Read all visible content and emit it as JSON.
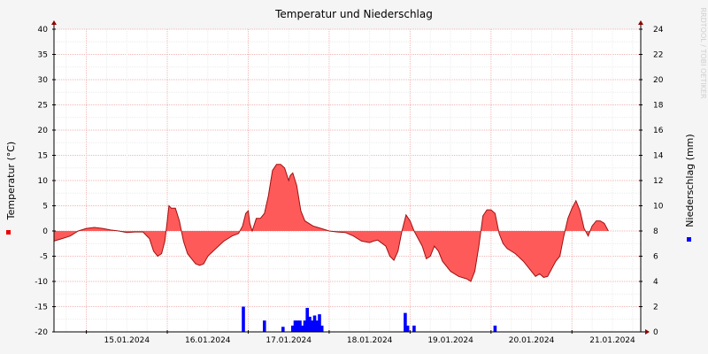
{
  "chart_data": {
    "type": "area",
    "title": "Temperatur und Niederschlag",
    "ylabel_left": "Temperatur (°C)",
    "ylabel_right": "Niederschlag (mm)",
    "watermark": "RRDTOOL / TOBI OETIKER",
    "ylim_left": [
      -20,
      40
    ],
    "ylim_right": [
      0,
      24
    ],
    "yticks_left": [
      "40",
      "35",
      "30",
      "25",
      "20",
      "15",
      "10",
      "5",
      "0",
      "-5",
      "-10",
      "-15",
      "-20"
    ],
    "yticks_right": [
      "24",
      "22",
      "20",
      "18",
      "16",
      "14",
      "12",
      "10",
      "8",
      "6",
      "4",
      "2",
      "0"
    ],
    "xticks": [
      "15.01.2024",
      "16.01.2024",
      "17.01.2024",
      "18.01.2024",
      "19.01.2024",
      "20.01.2024",
      "21.01.2024"
    ],
    "xlim_days": [
      14.6,
      21.85
    ],
    "grid": true,
    "series": [
      {
        "name": "Temperatur",
        "color": "#ff5a5a",
        "line_color": "#a01010",
        "type": "area",
        "points": [
          [
            14.6,
            -2.0
          ],
          [
            14.7,
            -1.5
          ],
          [
            14.8,
            -1.0
          ],
          [
            14.9,
            0.0
          ],
          [
            15.0,
            0.5
          ],
          [
            15.1,
            0.7
          ],
          [
            15.2,
            0.5
          ],
          [
            15.3,
            0.2
          ],
          [
            15.4,
            0.0
          ],
          [
            15.5,
            -0.3
          ],
          [
            15.6,
            -0.2
          ],
          [
            15.7,
            -0.2
          ],
          [
            15.78,
            -1.5
          ],
          [
            15.83,
            -4.0
          ],
          [
            15.88,
            -5.0
          ],
          [
            15.93,
            -4.5
          ],
          [
            15.97,
            -2.0
          ],
          [
            16.0,
            2.0
          ],
          [
            16.02,
            5.0
          ],
          [
            16.05,
            4.5
          ],
          [
            16.1,
            4.5
          ],
          [
            16.15,
            2.0
          ],
          [
            16.2,
            -2.0
          ],
          [
            16.25,
            -4.5
          ],
          [
            16.3,
            -5.5
          ],
          [
            16.35,
            -6.5
          ],
          [
            16.4,
            -6.8
          ],
          [
            16.45,
            -6.5
          ],
          [
            16.5,
            -5.0
          ],
          [
            16.6,
            -3.5
          ],
          [
            16.7,
            -2.0
          ],
          [
            16.8,
            -1.0
          ],
          [
            16.88,
            -0.5
          ],
          [
            16.93,
            1.0
          ],
          [
            16.97,
            3.5
          ],
          [
            17.0,
            4.0
          ],
          [
            17.02,
            1.5
          ],
          [
            17.05,
            0.0
          ],
          [
            17.1,
            2.5
          ],
          [
            17.15,
            2.5
          ],
          [
            17.2,
            3.5
          ],
          [
            17.25,
            7.0
          ],
          [
            17.3,
            12.0
          ],
          [
            17.35,
            13.2
          ],
          [
            17.4,
            13.2
          ],
          [
            17.45,
            12.5
          ],
          [
            17.5,
            10.0
          ],
          [
            17.52,
            11.0
          ],
          [
            17.55,
            11.5
          ],
          [
            17.6,
            9.0
          ],
          [
            17.65,
            4.0
          ],
          [
            17.7,
            2.0
          ],
          [
            17.8,
            1.0
          ],
          [
            17.9,
            0.5
          ],
          [
            18.0,
            0.0
          ],
          [
            18.1,
            -0.2
          ],
          [
            18.2,
            -0.3
          ],
          [
            18.3,
            -1.0
          ],
          [
            18.4,
            -2.0
          ],
          [
            18.5,
            -2.3
          ],
          [
            18.55,
            -2.0
          ],
          [
            18.6,
            -1.8
          ],
          [
            18.7,
            -3.0
          ],
          [
            18.75,
            -5.0
          ],
          [
            18.8,
            -5.8
          ],
          [
            18.85,
            -4.0
          ],
          [
            18.9,
            0.0
          ],
          [
            18.95,
            3.2
          ],
          [
            19.0,
            2.0
          ],
          [
            19.05,
            0.0
          ],
          [
            19.1,
            -1.5
          ],
          [
            19.15,
            -3.0
          ],
          [
            19.2,
            -5.5
          ],
          [
            19.25,
            -5.0
          ],
          [
            19.3,
            -3.0
          ],
          [
            19.35,
            -4.0
          ],
          [
            19.4,
            -6.0
          ],
          [
            19.5,
            -8.0
          ],
          [
            19.6,
            -9.0
          ],
          [
            19.7,
            -9.5
          ],
          [
            19.75,
            -10.0
          ],
          [
            19.8,
            -8.0
          ],
          [
            19.85,
            -3.0
          ],
          [
            19.9,
            3.0
          ],
          [
            19.95,
            4.2
          ],
          [
            20.0,
            4.2
          ],
          [
            20.05,
            3.5
          ],
          [
            20.1,
            -0.5
          ],
          [
            20.15,
            -2.5
          ],
          [
            20.2,
            -3.5
          ],
          [
            20.3,
            -4.5
          ],
          [
            20.4,
            -6.0
          ],
          [
            20.5,
            -8.0
          ],
          [
            20.55,
            -9.0
          ],
          [
            20.6,
            -8.5
          ],
          [
            20.65,
            -9.2
          ],
          [
            20.7,
            -9.0
          ],
          [
            20.8,
            -6.0
          ],
          [
            20.85,
            -5.0
          ],
          [
            20.9,
            -1.0
          ],
          [
            20.95,
            2.5
          ],
          [
            21.0,
            4.5
          ],
          [
            21.05,
            6.0
          ],
          [
            21.1,
            4.0
          ],
          [
            21.15,
            0.5
          ],
          [
            21.2,
            -1.0
          ],
          [
            21.25,
            1.0
          ],
          [
            21.3,
            2.0
          ],
          [
            21.35,
            2.0
          ],
          [
            21.4,
            1.5
          ],
          [
            21.45,
            0.0
          ]
        ]
      },
      {
        "name": "Niederschlag",
        "color": "#0000ff",
        "type": "bar",
        "points": [
          [
            16.94,
            2.0
          ],
          [
            17.2,
            0.9
          ],
          [
            17.43,
            0.4
          ],
          [
            17.55,
            0.5
          ],
          [
            17.58,
            0.9
          ],
          [
            17.61,
            0.9
          ],
          [
            17.64,
            0.9
          ],
          [
            17.67,
            0.5
          ],
          [
            17.7,
            0.9
          ],
          [
            17.73,
            1.9
          ],
          [
            17.76,
            1.2
          ],
          [
            17.79,
            0.9
          ],
          [
            17.82,
            1.3
          ],
          [
            17.85,
            0.9
          ],
          [
            17.88,
            1.4
          ],
          [
            17.91,
            0.5
          ],
          [
            18.94,
            1.5
          ],
          [
            18.97,
            0.5
          ],
          [
            19.05,
            0.5
          ],
          [
            20.05,
            0.5
          ]
        ]
      }
    ],
    "legend_markers": [
      {
        "side": "left",
        "color": "#ee0000"
      },
      {
        "side": "right",
        "color": "#0000ff"
      }
    ]
  }
}
